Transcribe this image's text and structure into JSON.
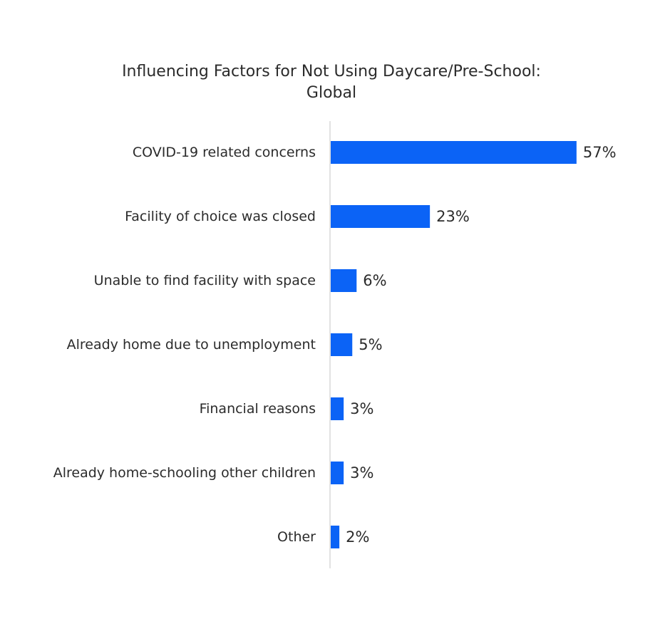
{
  "chart_data": {
    "type": "bar",
    "orientation": "horizontal",
    "title": "Influencing Factors for Not Using Daycare/Pre-School:",
    "subtitle": "Global",
    "categories": [
      "COVID-19 related concerns",
      "Facility of choice was closed",
      "Unable to find facility with space",
      "Already home due to unemployment",
      "Financial reasons",
      "Already home-schooling other children",
      "Other"
    ],
    "values": [
      57,
      23,
      6,
      5,
      3,
      3,
      2
    ],
    "value_labels": [
      "57%",
      "23%",
      "6%",
      "5%",
      "3%",
      "3%",
      "2%"
    ],
    "bar_color": "#0b63f6",
    "axis_color": "#d9d9d9",
    "grid": false,
    "legend": "none"
  }
}
